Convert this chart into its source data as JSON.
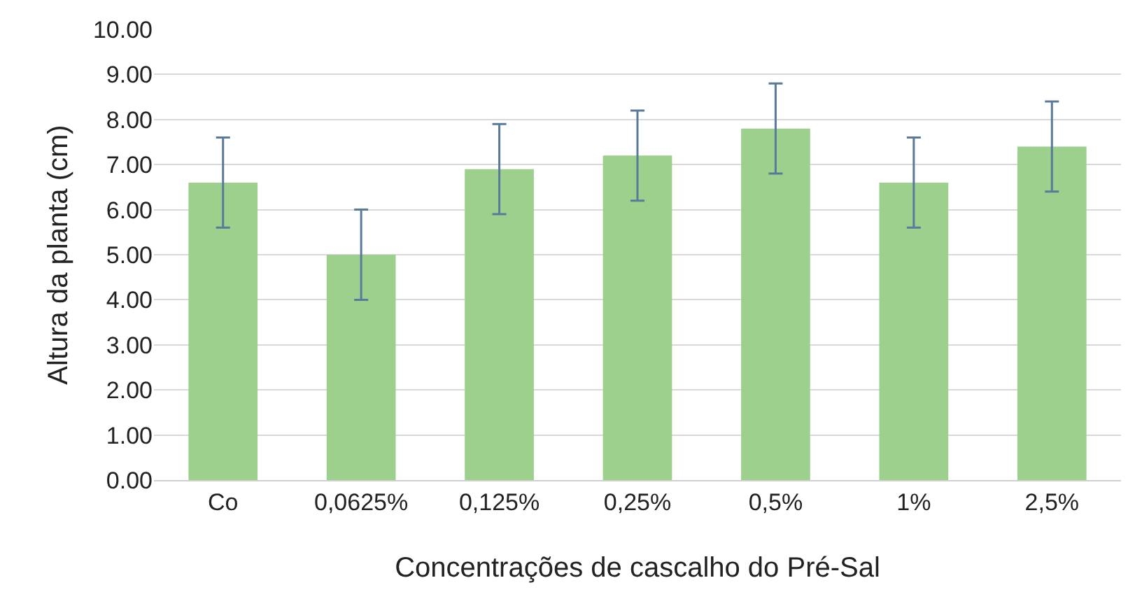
{
  "chart_data": {
    "type": "bar",
    "xlabel": "Concentrações de cascalho do Pré-Sal",
    "ylabel": "Altura da planta (cm)",
    "categories": [
      "Co",
      "0,0625%",
      "0,125%",
      "0,25%",
      "0,5%",
      "1%",
      "2,5%"
    ],
    "values": [
      6.6,
      5.0,
      6.9,
      7.2,
      7.8,
      6.6,
      7.4
    ],
    "errors": [
      1,
      1,
      1,
      1,
      1,
      1,
      1
    ],
    "color": "#9dd08d",
    "ylim": [
      0,
      10
    ],
    "yticks": [
      {
        "value": 0,
        "label": "0.00"
      },
      {
        "value": 1,
        "label": "1.00"
      },
      {
        "value": 2,
        "label": "2.00"
      },
      {
        "value": 3,
        "label": "3.00"
      },
      {
        "value": 4,
        "label": "4.00"
      },
      {
        "value": 5,
        "label": "5.00"
      },
      {
        "value": 6,
        "label": "6.00"
      },
      {
        "value": 7,
        "label": "7.00"
      },
      {
        "value": 8,
        "label": "8.00"
      },
      {
        "value": 9,
        "label": "9.00"
      },
      {
        "value": 10,
        "label": "10.00"
      }
    ],
    "grid": "y"
  }
}
